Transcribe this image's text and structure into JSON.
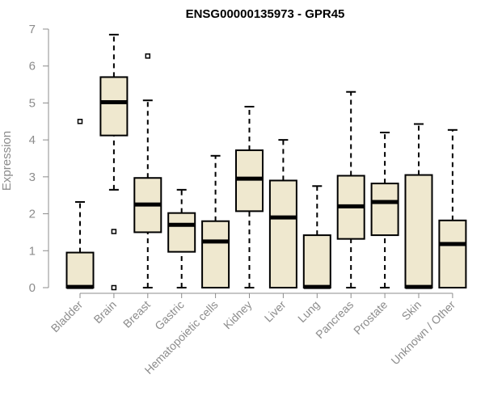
{
  "chart_data": {
    "type": "boxplot",
    "title": "ENSG00000135973 - GPR45",
    "xlabel": "",
    "ylabel": "Expression",
    "ylim": [
      0,
      7
    ],
    "yticks": [
      0,
      1,
      2,
      3,
      4,
      5,
      6,
      7
    ],
    "grid": false,
    "legend": "none",
    "colors": {
      "box_fill": "#efe8cf",
      "box_stroke": "#000000",
      "axis": "#8c8c8c",
      "text": "#8c8c8c"
    },
    "categories": [
      "Bladder",
      "Brain",
      "Breast",
      "Gastric",
      "Hematopoietic cells",
      "Kidney",
      "Liver",
      "Lung",
      "Pancreas",
      "Prostate",
      "Skin",
      "Unknown / Other"
    ],
    "boxes": [
      {
        "min": 0,
        "q1": 0,
        "median": 0.02,
        "q3": 0.95,
        "max": 2.32,
        "outliers": [
          4.5
        ]
      },
      {
        "min": 2.65,
        "q1": 4.12,
        "median": 5.02,
        "q3": 5.7,
        "max": 6.85,
        "outliers": [
          1.52,
          0
        ]
      },
      {
        "min": 0,
        "q1": 1.5,
        "median": 2.25,
        "q3": 2.97,
        "max": 5.07,
        "outliers": [
          6.27
        ]
      },
      {
        "min": 0,
        "q1": 0.97,
        "median": 1.7,
        "q3": 2.02,
        "max": 2.65,
        "outliers": []
      },
      {
        "min": 0,
        "q1": 0,
        "median": 1.25,
        "q3": 1.8,
        "max": 3.57,
        "outliers": []
      },
      {
        "min": 0,
        "q1": 2.07,
        "median": 2.95,
        "q3": 3.72,
        "max": 4.9,
        "outliers": []
      },
      {
        "min": 0,
        "q1": 0,
        "median": 1.9,
        "q3": 2.9,
        "max": 4.0,
        "outliers": []
      },
      {
        "min": 0,
        "q1": 0,
        "median": 0.02,
        "q3": 1.42,
        "max": 2.75,
        "outliers": []
      },
      {
        "min": 0,
        "q1": 1.32,
        "median": 2.2,
        "q3": 3.03,
        "max": 5.3,
        "outliers": []
      },
      {
        "min": 0,
        "q1": 1.42,
        "median": 2.32,
        "q3": 2.82,
        "max": 4.2,
        "outliers": []
      },
      {
        "min": 0,
        "q1": 0,
        "median": 0.02,
        "q3": 3.05,
        "max": 4.43,
        "outliers": []
      },
      {
        "min": 0,
        "q1": 0,
        "median": 1.18,
        "q3": 1.82,
        "max": 4.27,
        "outliers": []
      }
    ]
  }
}
